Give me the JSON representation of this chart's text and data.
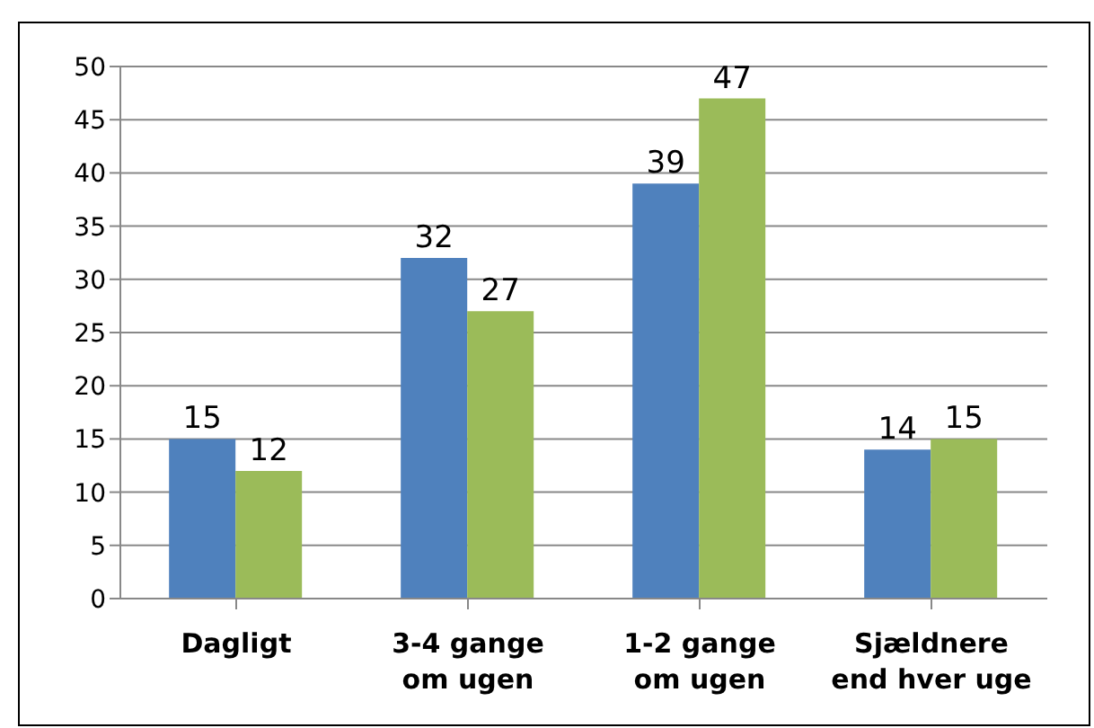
{
  "chart_data": {
    "type": "bar",
    "categories": [
      "Dagligt",
      "3-4 gange\nom ugen",
      "1-2 gange\nom ugen",
      "Sjældnere\nend hver uge"
    ],
    "series": [
      {
        "color": "#4f81bd",
        "values": [
          15,
          32,
          39,
          14
        ]
      },
      {
        "color": "#9bbb59",
        "values": [
          12,
          27,
          47,
          15
        ]
      }
    ],
    "ylim": [
      0,
      50
    ],
    "yticks": [
      0,
      5,
      10,
      15,
      20,
      25,
      30,
      35,
      40,
      45,
      50
    ],
    "grid": "y",
    "data_labels": true
  }
}
